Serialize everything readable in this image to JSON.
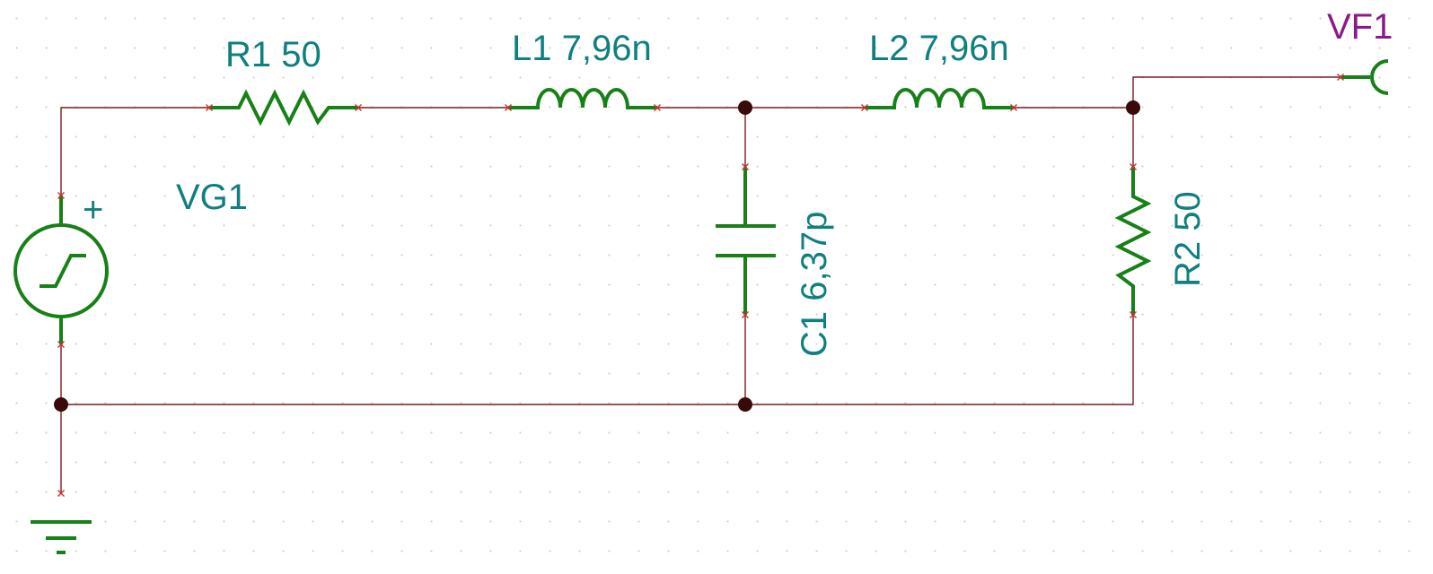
{
  "components": {
    "r1": {
      "label": "R1 50"
    },
    "l1": {
      "label": "L1 7,96n"
    },
    "l2": {
      "label": "L2 7,96n"
    },
    "c1": {
      "label": "C1 6,37p"
    },
    "r2": {
      "label": "R2 50"
    },
    "vg1": {
      "label": "VG1",
      "polarity": "+"
    },
    "vf1": {
      "label": "VF1"
    }
  },
  "colors": {
    "wire": "#7a1c1c",
    "component": "#178017",
    "label": "#0f7f80",
    "probe_label": "#8a1a8a",
    "pin_marker": "#d03030",
    "junction": "#3a0a0a"
  }
}
